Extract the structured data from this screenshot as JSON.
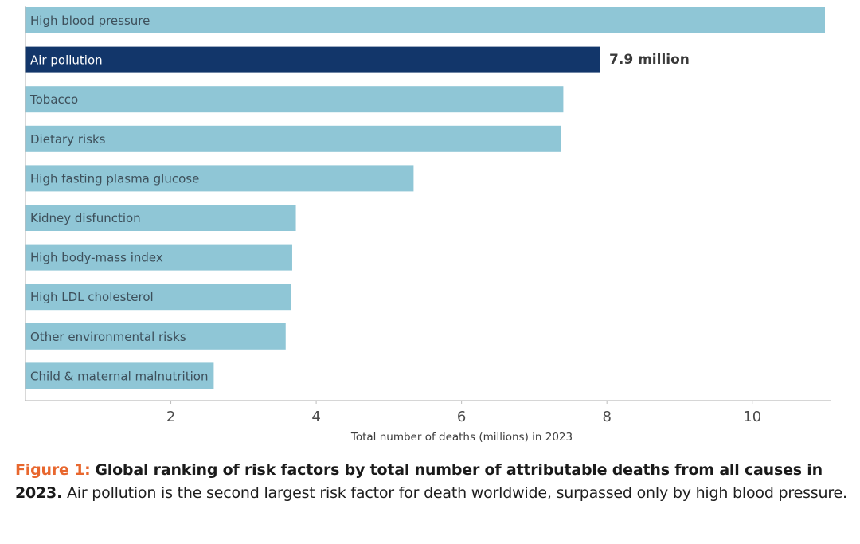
{
  "chart_data": {
    "type": "bar",
    "orientation": "horizontal",
    "categories": [
      "High blood pressure",
      "Air pollution",
      "Tobacco",
      "Dietary risks",
      "High fasting plasma glucose",
      "Kidney disfunction",
      "High body-mass index",
      "High LDL cholesterol",
      "Other environmental risks",
      "Child & maternal malnutrition"
    ],
    "values": [
      11.0,
      7.9,
      7.4,
      7.37,
      5.34,
      3.72,
      3.67,
      3.65,
      3.58,
      2.59
    ],
    "highlight_index": 1,
    "highlight_label": "7.9 million",
    "xlabel": "Total number of deaths (millions) in 2023",
    "ylabel": "",
    "xticks": [
      2,
      4,
      6,
      8,
      10
    ],
    "xlim": [
      0,
      11.0
    ],
    "grid": false,
    "colors": {
      "bar": "#8fc6d6",
      "highlight": "#12366a",
      "bar_text": "#3d4f5a",
      "highlight_text": "#ffffff",
      "axis": "#bdbdbd"
    }
  },
  "caption": {
    "figure_number": "Figure 1:",
    "title": "Global ranking of risk factors by total number of attributable deaths from all causes in 2023.",
    "body": "Air pollution is the second largest risk factor for death worldwide, surpassed only by high blood pressure."
  }
}
